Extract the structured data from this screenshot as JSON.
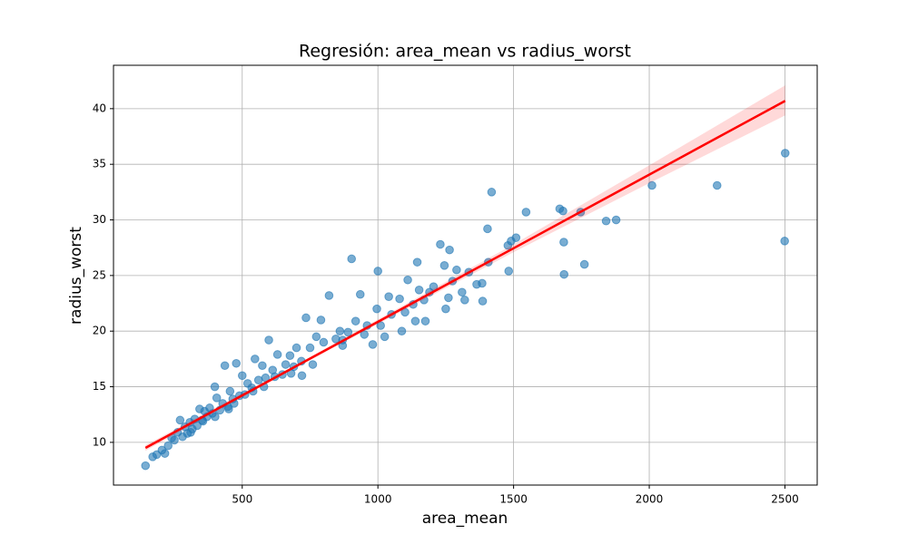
{
  "chart_data": {
    "type": "scatter",
    "title": "Regresión: area_mean vs radius_worst",
    "x_label": "area_mean",
    "y_label": "radius_worst",
    "xlim": [
      25.6,
      2618.9
    ],
    "ylim": [
      6.16,
      43.9
    ],
    "xticks": [
      500,
      1000,
      1500,
      2000,
      2500
    ],
    "yticks": [
      10,
      15,
      20,
      25,
      30,
      35,
      40
    ],
    "grid": true,
    "points": {
      "color": "#1f77b4",
      "x": [
        2501,
        2499,
        2250,
        2010,
        1878,
        1841,
        1761,
        1747,
        1686,
        1685,
        1682,
        1670,
        1546,
        1509,
        1491,
        1482,
        1479,
        1407,
        1404,
        1419,
        1386,
        1384,
        1364,
        1335,
        1320,
        1290,
        1275,
        1264,
        1250,
        1230,
        1245,
        1205,
        1170,
        1152,
        1145,
        1138,
        1130,
        1110,
        1088,
        1080,
        1050,
        1040,
        1025,
        1000,
        996,
        981,
        960,
        935,
        918,
        903,
        890,
        870,
        860,
        845,
        820,
        800,
        790,
        773,
        750,
        735,
        718,
        700,
        690,
        676,
        660,
        648,
        630,
        612,
        598,
        586,
        574,
        560,
        547,
        535,
        520,
        500,
        490,
        478,
        465,
        455,
        447,
        436,
        428,
        418,
        406,
        399,
        390,
        380,
        370,
        361,
        352,
        343,
        334,
        325,
        316,
        307,
        298,
        289,
        280,
        271,
        262,
        250,
        240,
        227,
        215,
        204,
        185,
        170,
        143.5,
        580,
        620,
        680,
        540,
        470,
        510,
        450,
        400,
        355,
        310,
        950,
        1010,
        1100,
        1190,
        1260,
        1310,
        1175,
        870,
        760,
        720
      ],
      "y": [
        36.0,
        28.1,
        33.1,
        33.1,
        30.0,
        29.9,
        26.0,
        30.7,
        25.1,
        28.0,
        30.8,
        31.0,
        30.7,
        28.4,
        28.1,
        25.4,
        27.7,
        26.2,
        29.2,
        32.5,
        22.7,
        24.3,
        24.2,
        25.3,
        22.8,
        25.5,
        24.5,
        27.3,
        22.0,
        27.8,
        25.9,
        24.0,
        22.8,
        23.7,
        26.2,
        20.9,
        22.4,
        24.6,
        20.0,
        22.9,
        21.5,
        23.1,
        19.5,
        25.4,
        22.0,
        18.8,
        20.5,
        23.3,
        20.9,
        26.5,
        19.9,
        18.7,
        20.0,
        19.3,
        23.2,
        19.0,
        21.0,
        19.5,
        18.5,
        21.2,
        17.3,
        18.5,
        16.8,
        17.8,
        17.0,
        16.1,
        17.9,
        16.5,
        19.2,
        15.8,
        16.9,
        15.6,
        17.5,
        14.9,
        15.3,
        16.0,
        14.2,
        17.1,
        13.9,
        14.6,
        13.2,
        16.9,
        13.5,
        12.9,
        14.0,
        15.0,
        12.6,
        13.1,
        12.3,
        12.8,
        12.0,
        13.0,
        11.5,
        12.1,
        11.2,
        11.8,
        10.8,
        11.4,
        10.5,
        12.0,
        10.9,
        10.2,
        10.4,
        9.7,
        9.0,
        9.3,
        8.9,
        8.7,
        7.9,
        15.0,
        15.9,
        16.2,
        14.6,
        13.5,
        14.3,
        13.0,
        12.3,
        11.9,
        10.9,
        19.7,
        20.5,
        21.7,
        23.5,
        23.0,
        23.5,
        20.9,
        19.2,
        17.0,
        16.0
      ]
    },
    "regression": {
      "color": "#ff0000",
      "x": [
        143.5,
        700,
        1500,
        2000,
        2501
      ],
      "y": [
        9.5,
        16.87,
        27.45,
        34.07,
        40.7
      ],
      "ci_lower": [
        9.25,
        16.75,
        27.1,
        33.3,
        39.4
      ],
      "ci_upper": [
        9.75,
        17.0,
        27.8,
        34.9,
        42.1
      ]
    }
  }
}
